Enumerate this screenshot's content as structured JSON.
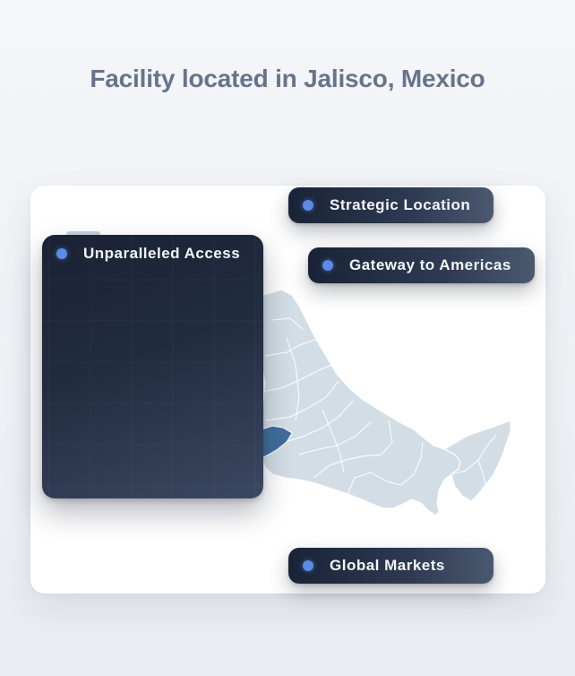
{
  "page": {
    "title": "Facility located in Jalisco, Mexico"
  },
  "map": {
    "region": "Mexico",
    "highlighted_state": "Jalisco",
    "land_color": "#d3dde5",
    "highlight_color": "#3f6e9c"
  },
  "callouts": {
    "strategic_location": "Strategic Location",
    "gateway": "Gateway to Americas",
    "global_markets": "Global Markets",
    "unparalleled_access": "Unparalleled Access"
  },
  "colors": {
    "accent_dot": "#5b8be6",
    "pill_dark": "#1a2336",
    "title": "#67748b"
  }
}
